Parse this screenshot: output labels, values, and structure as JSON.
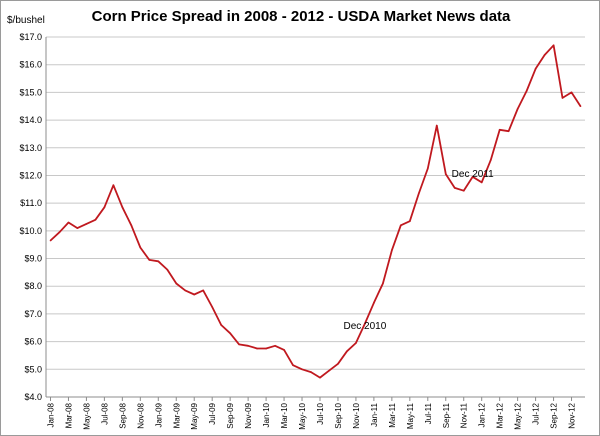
{
  "chart_data": {
    "type": "line",
    "title": "Corn Price Spread in 2008 - 2012 - USDA Market News data",
    "ylabel": "$/bushel",
    "xlabel": "",
    "ylim": [
      4.0,
      17.0
    ],
    "y_ticks": [
      "$4.0",
      "$5.0",
      "$6.0",
      "$7.0",
      "$8.0",
      "$9.0",
      "$10.0",
      "$11.0",
      "$12.0",
      "$13.0",
      "$14.0",
      "$15.0",
      "$16.0",
      "$17.0"
    ],
    "x_tick_labels": [
      "Jan-08",
      "Mar-08",
      "May-08",
      "Jul-08",
      "Sep-08",
      "Nov-08",
      "Jan-09",
      "Mar-09",
      "May-09",
      "Jul-09",
      "Sep-09",
      "Nov-09",
      "Jan-10",
      "Mar-10",
      "May-10",
      "Jul-10",
      "Sep-10",
      "Nov-10",
      "Jan-11",
      "Mar-11",
      "May-11",
      "Jul-11",
      "Sep-11",
      "Nov-11",
      "Jan-12",
      "Mar-12",
      "May-12",
      "Jul-12",
      "Sep-12",
      "Nov-12"
    ],
    "grid": true,
    "series": [
      {
        "name": "",
        "color": "#c0191f",
        "values": [
          9.65,
          9.95,
          10.3,
          10.1,
          10.25,
          10.4,
          10.85,
          11.65,
          10.85,
          10.2,
          9.4,
          8.95,
          8.9,
          8.6,
          8.1,
          7.85,
          7.7,
          7.85,
          7.25,
          6.6,
          6.3,
          5.9,
          5.85,
          5.75,
          5.75,
          5.85,
          5.7,
          5.15,
          5.0,
          4.9,
          4.7,
          4.95,
          5.2,
          5.65,
          5.95,
          6.65,
          7.4,
          8.1,
          9.3,
          10.2,
          10.35,
          11.35,
          12.25,
          13.8,
          12.05,
          11.55,
          11.45,
          11.95,
          11.75,
          12.55,
          13.65,
          13.6,
          14.4,
          15.05,
          15.85,
          16.35,
          16.7,
          14.8,
          15.0,
          14.5
        ]
      }
    ],
    "annotations": [
      {
        "text": "Dec 2010",
        "x_index": 35,
        "y": 6.45
      },
      {
        "text": "Dec 2011",
        "x_index": 47,
        "y": 11.95
      }
    ]
  }
}
